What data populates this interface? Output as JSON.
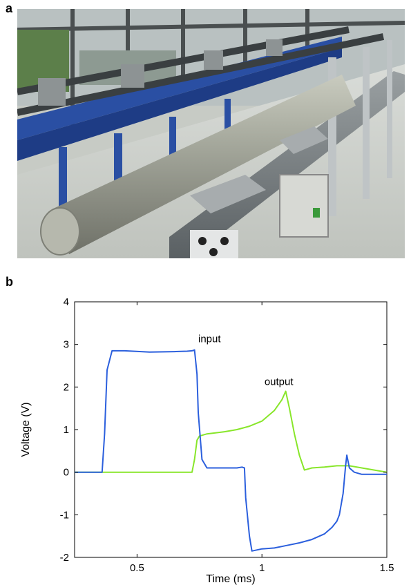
{
  "panel_a": {
    "label": "a"
  },
  "panel_b": {
    "label": "b"
  },
  "colors": {
    "input": "#2b5fdd",
    "output": "#88e62a"
  },
  "chart_data": {
    "type": "line",
    "xlabel": "Time (ms)",
    "ylabel": "Voltage (V)",
    "xlim": [
      0.25,
      1.5
    ],
    "ylim": [
      -2,
      4
    ],
    "xticks": [
      0.5,
      1,
      1.5
    ],
    "xtick_labels": [
      "0.5",
      "1",
      "1.5"
    ],
    "yticks": [
      -2,
      -1,
      0,
      1,
      2,
      3,
      4
    ],
    "ytick_labels": [
      "-2",
      "-1",
      "0",
      "1",
      "2",
      "3",
      "4"
    ],
    "grid": false,
    "legend": "none",
    "series": [
      {
        "name": "input",
        "x": [
          0.25,
          0.36,
          0.37,
          0.38,
          0.4,
          0.45,
          0.55,
          0.65,
          0.7,
          0.72,
          0.73,
          0.74,
          0.745,
          0.76,
          0.78,
          0.8,
          0.85,
          0.9,
          0.92,
          0.93,
          0.935,
          0.95,
          0.96,
          1.0,
          1.05,
          1.1,
          1.15,
          1.2,
          1.25,
          1.28,
          1.3,
          1.31,
          1.325,
          1.335,
          1.34,
          1.35,
          1.37,
          1.4,
          1.45,
          1.5
        ],
        "y": [
          0.0,
          0.0,
          0.9,
          2.4,
          2.85,
          2.85,
          2.82,
          2.83,
          2.84,
          2.85,
          2.87,
          2.3,
          1.4,
          0.3,
          0.1,
          0.1,
          0.1,
          0.1,
          0.12,
          0.1,
          -0.6,
          -1.5,
          -1.85,
          -1.8,
          -1.78,
          -1.72,
          -1.66,
          -1.58,
          -1.45,
          -1.3,
          -1.15,
          -1.0,
          -0.5,
          0.15,
          0.4,
          0.1,
          0.0,
          -0.05,
          -0.05,
          -0.05
        ]
      },
      {
        "name": "output",
        "x": [
          0.25,
          0.72,
          0.73,
          0.74,
          0.75,
          0.78,
          0.85,
          0.9,
          0.95,
          1.0,
          1.05,
          1.08,
          1.095,
          1.11,
          1.13,
          1.15,
          1.17,
          1.2,
          1.25,
          1.3,
          1.35,
          1.4,
          1.45,
          1.5
        ],
        "y": [
          0.0,
          0.0,
          0.3,
          0.75,
          0.85,
          0.9,
          0.95,
          1.0,
          1.08,
          1.2,
          1.45,
          1.7,
          1.9,
          1.5,
          0.9,
          0.4,
          0.05,
          0.1,
          0.12,
          0.15,
          0.15,
          0.1,
          0.05,
          0.0
        ]
      }
    ],
    "annotations": [
      {
        "text": "input",
        "x": 0.745,
        "y": 3.05
      },
      {
        "text": "output",
        "x": 1.01,
        "y": 2.05
      }
    ]
  }
}
